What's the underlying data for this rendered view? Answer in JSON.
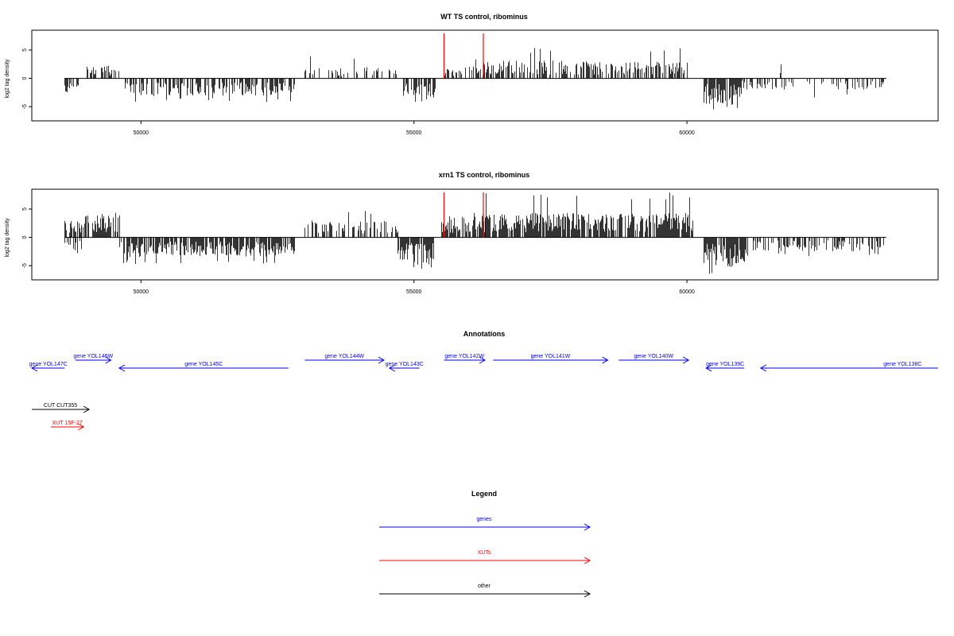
{
  "chart_data": [
    {
      "type": "bar",
      "title": "WT TS control, ribominus",
      "ylabel": "log2 tag density",
      "xlim": [
        48000,
        64600
      ],
      "ylim": [
        -7.5,
        8.5
      ],
      "yticks": [
        -5,
        0,
        5
      ],
      "xticks": [
        50000,
        55000,
        60000
      ],
      "xtick_labels": [
        "50000",
        "55000",
        "60000"
      ],
      "track_range": [
        48600,
        63650
      ],
      "markers": [
        55550,
        56270
      ],
      "marker_color": "#ff0000",
      "segments": [
        {
          "start": 48600,
          "end": 48850,
          "sign": -1,
          "mean": 1.8,
          "max": 2.8,
          "density": 0.4,
          "seed": 11
        },
        {
          "start": 49000,
          "end": 49600,
          "sign": 1,
          "mean": 1.4,
          "max": 2.5,
          "density": 0.6,
          "seed": 12
        },
        {
          "start": 49700,
          "end": 52800,
          "sign": -1,
          "mean": 1.9,
          "max": 4.2,
          "density": 0.6,
          "seed": 13
        },
        {
          "start": 53000,
          "end": 54700,
          "sign": 1,
          "mean": 1.2,
          "max": 4.0,
          "density": 0.28,
          "seed": 14
        },
        {
          "start": 54800,
          "end": 55400,
          "sign": -1,
          "mean": 2.6,
          "max": 5.3,
          "density": 0.8,
          "seed": 15
        },
        {
          "start": 55550,
          "end": 56270,
          "sign": 1,
          "mean": 1.3,
          "max": 4.0,
          "density": 0.5,
          "seed": 16
        },
        {
          "start": 56270,
          "end": 60000,
          "sign": 1,
          "mean": 1.9,
          "max": 5.5,
          "density": 0.55,
          "seed": 17
        },
        {
          "start": 60300,
          "end": 61000,
          "sign": -1,
          "mean": 2.8,
          "max": 5.5,
          "density": 0.85,
          "seed": 18
        },
        {
          "start": 61000,
          "end": 63600,
          "sign": -1,
          "mean": 1.2,
          "max": 3.4,
          "density": 0.25,
          "seed": 19
        },
        {
          "start": 61700,
          "end": 61750,
          "sign": 1,
          "mean": 2.0,
          "max": 2.5,
          "density": 0.6,
          "seed": 20
        }
      ]
    },
    {
      "type": "bar",
      "title": "xrn1 TS control, ribominus",
      "ylabel": "log2 tag density",
      "xlim": [
        48000,
        64600
      ],
      "ylim": [
        -7.5,
        8.5
      ],
      "yticks": [
        -5,
        0,
        5
      ],
      "xticks": [
        50000,
        55000,
        60000
      ],
      "xtick_labels": [
        "50000",
        "55000",
        "60000"
      ],
      "track_range": [
        48600,
        63650
      ],
      "markers": [
        55550,
        56270
      ],
      "marker_color": "#ff0000",
      "segments": [
        {
          "start": 48600,
          "end": 48900,
          "sign": 1,
          "mean": 1.8,
          "max": 3.0,
          "density": 0.6,
          "seed": 31
        },
        {
          "start": 48600,
          "end": 48900,
          "sign": -1,
          "mean": 1.7,
          "max": 3.0,
          "density": 0.6,
          "seed": 32
        },
        {
          "start": 48900,
          "end": 49600,
          "sign": 1,
          "mean": 2.5,
          "max": 4.8,
          "density": 0.75,
          "seed": 33
        },
        {
          "start": 49600,
          "end": 52800,
          "sign": -1,
          "mean": 2.1,
          "max": 4.7,
          "density": 0.75,
          "seed": 34
        },
        {
          "start": 53000,
          "end": 54700,
          "sign": 1,
          "mean": 1.8,
          "max": 5.2,
          "density": 0.5,
          "seed": 35
        },
        {
          "start": 54700,
          "end": 55350,
          "sign": -1,
          "mean": 2.7,
          "max": 5.6,
          "density": 0.85,
          "seed": 36
        },
        {
          "start": 55500,
          "end": 56300,
          "sign": 1,
          "mean": 2.3,
          "max": 5.0,
          "density": 0.8,
          "seed": 37
        },
        {
          "start": 56300,
          "end": 60100,
          "sign": 1,
          "mean": 2.6,
          "max": 8.2,
          "density": 0.8,
          "seed": 38
        },
        {
          "start": 60300,
          "end": 61100,
          "sign": -1,
          "mean": 3.2,
          "max": 7.0,
          "density": 0.85,
          "seed": 39
        },
        {
          "start": 61200,
          "end": 63650,
          "sign": -1,
          "mean": 1.5,
          "max": 3.4,
          "density": 0.5,
          "seed": 40
        }
      ]
    }
  ],
  "annotations": {
    "title": "Annotations",
    "features": [
      {
        "label": "gene YOL147C",
        "start": 48600,
        "end": 48000,
        "color": "#0000ff",
        "row": 2
      },
      {
        "label": "gene YOL146W",
        "start": 48800,
        "end": 49450,
        "color": "#0000ff",
        "row": 1
      },
      {
        "label": "gene YOL145C",
        "start": 52700,
        "end": 49600,
        "color": "#0000ff",
        "row": 2
      },
      {
        "label": "gene YOL144W",
        "start": 53000,
        "end": 54450,
        "color": "#0000ff",
        "row": 1
      },
      {
        "label": "gene YOL143C",
        "start": 55100,
        "end": 54550,
        "color": "#0000ff",
        "row": 2
      },
      {
        "label": "gene YOL142W",
        "start": 55550,
        "end": 56300,
        "color": "#0000ff",
        "row": 1
      },
      {
        "label": "gene YOL141W",
        "start": 56450,
        "end": 58550,
        "color": "#0000ff",
        "row": 1
      },
      {
        "label": "gene YOL140W",
        "start": 58750,
        "end": 60030,
        "color": "#0000ff",
        "row": 1
      },
      {
        "label": "gene YOL139C",
        "start": 61050,
        "end": 60350,
        "color": "#0000ff",
        "row": 2
      },
      {
        "label": "gene YOL138C",
        "start": 64600,
        "end": 61350,
        "color": "#0000ff",
        "row": 2,
        "label_x": 63950
      },
      {
        "label": "CUT CUT355",
        "start": 48000,
        "end": 49050,
        "color": "#000000",
        "row": 3
      },
      {
        "label": "XUT 15F-27",
        "start": 48350,
        "end": 48950,
        "color": "#ff0000",
        "row": 4
      }
    ]
  },
  "legend": {
    "title": "Legend",
    "items": [
      {
        "label": "genes",
        "color": "#0000ff"
      },
      {
        "label": "XUTs",
        "color": "#ff0000"
      },
      {
        "label": "other",
        "color": "#000000"
      }
    ]
  }
}
